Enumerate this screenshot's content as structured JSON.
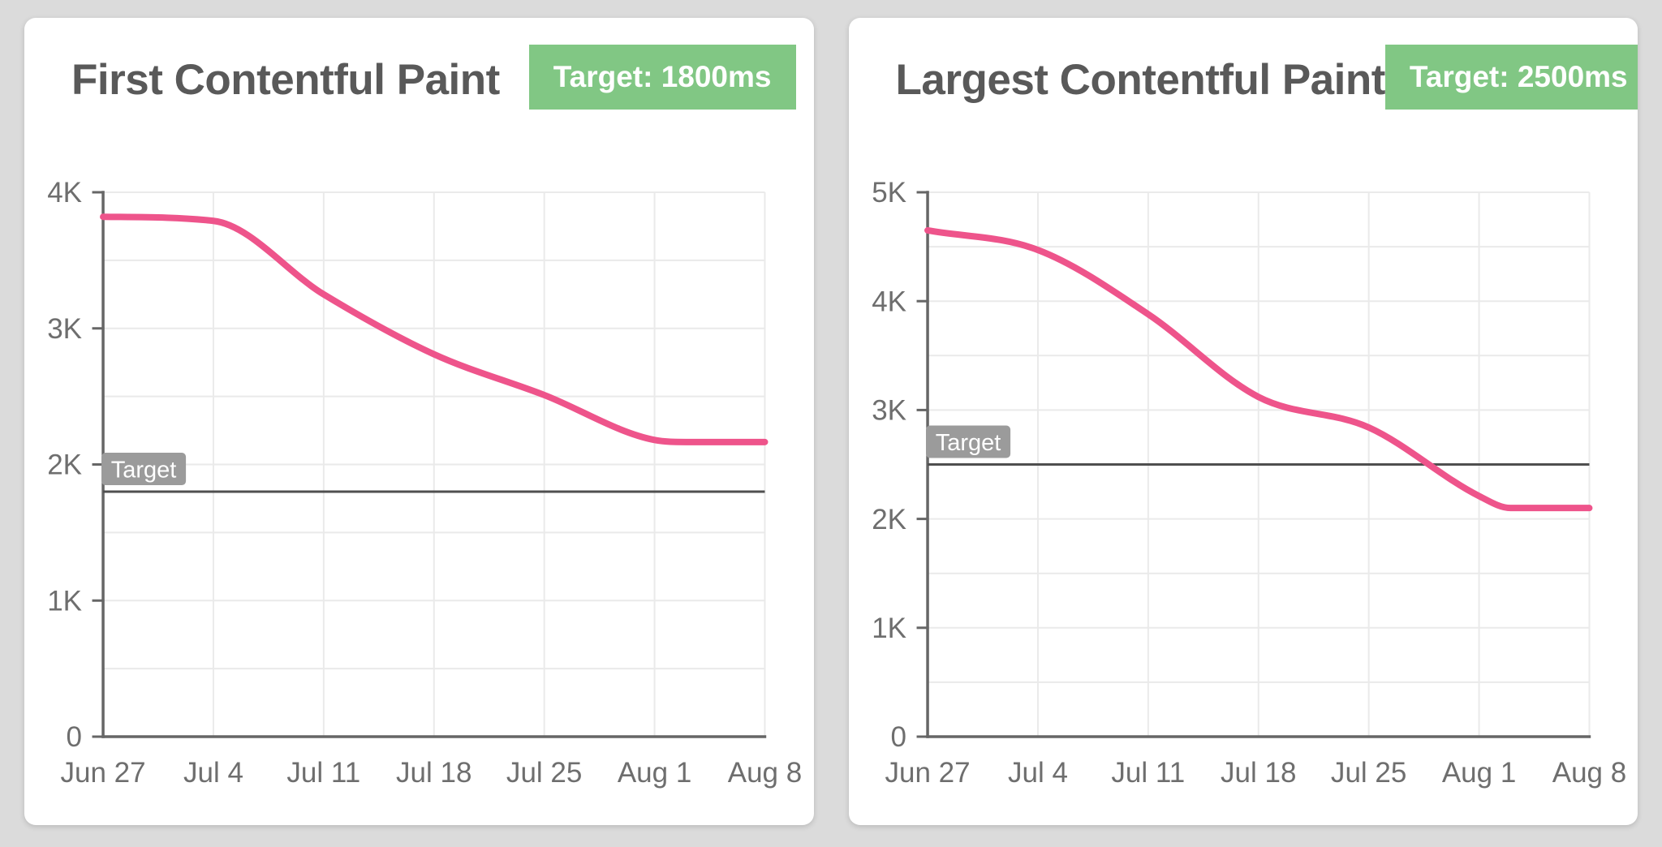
{
  "colors": {
    "page_background": "#DBDBDB",
    "card_background": "#FFFFFF",
    "title_text": "#595959",
    "badge_background": "#81C784",
    "badge_text": "#FFFFFF",
    "series_line": "#EE548B",
    "axis_line": "#666666",
    "target_line": "#4F4F4F",
    "gridline": "#EAEAEA",
    "tick_label_text": "#6E6E6E",
    "target_flag_background": "#9B9B9B",
    "target_flag_text": "#FFFFFF"
  },
  "chart_data": [
    {
      "type": "line",
      "title": "First Contentful Paint",
      "badge_label": "Target: 1800ms",
      "target": {
        "label": "Target",
        "value": 1800
      },
      "x_tick_labels": [
        "Jun 27",
        "Jul 4",
        "Jul 11",
        "Jul 18",
        "Jul 25",
        "Aug 1",
        "Aug 8"
      ],
      "x_tick_days": [
        0,
        7,
        14,
        21,
        28,
        35,
        42
      ],
      "x_days": [
        0,
        7,
        14,
        21,
        28,
        35,
        37,
        42
      ],
      "values": [
        3820,
        3790,
        3250,
        2810,
        2510,
        2180,
        2165,
        2165
      ],
      "ylim": [
        0,
        4000
      ],
      "y_ticks": [
        {
          "value": 0,
          "label": "0"
        },
        {
          "value": 1000,
          "label": "1K"
        },
        {
          "value": 2000,
          "label": "2K"
        },
        {
          "value": 3000,
          "label": "3K"
        },
        {
          "value": 4000,
          "label": "4K"
        }
      ],
      "y_grid_step": 500,
      "grid": true,
      "legend": false,
      "xlabel": "",
      "ylabel": ""
    },
    {
      "type": "line",
      "title": "Largest Contentful Paint",
      "badge_label": "Target: 2500ms",
      "target": {
        "label": "Target",
        "value": 2500
      },
      "x_tick_labels": [
        "Jun 27",
        "Jul 4",
        "Jul 11",
        "Jul 18",
        "Jul 25",
        "Aug 1",
        "Aug 8"
      ],
      "x_tick_days": [
        0,
        7,
        14,
        21,
        28,
        35,
        42
      ],
      "x_days": [
        0,
        7,
        14,
        21,
        28,
        35,
        37,
        42
      ],
      "values": [
        4650,
        4470,
        3880,
        3120,
        2840,
        2210,
        2100,
        2100
      ],
      "ylim": [
        0,
        5000
      ],
      "y_ticks": [
        {
          "value": 0,
          "label": "0"
        },
        {
          "value": 1000,
          "label": "1K"
        },
        {
          "value": 2000,
          "label": "2K"
        },
        {
          "value": 3000,
          "label": "3K"
        },
        {
          "value": 4000,
          "label": "4K"
        },
        {
          "value": 5000,
          "label": "5K"
        }
      ],
      "y_grid_step": 500,
      "grid": true,
      "legend": false,
      "xlabel": "",
      "ylabel": ""
    }
  ]
}
